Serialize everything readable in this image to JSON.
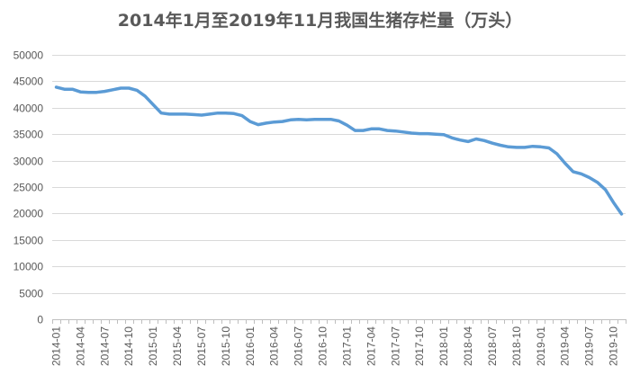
{
  "chart_data": {
    "type": "line",
    "title": "2014年1月至2019年11月我国生猪存栏量（万头）",
    "xlabel": "",
    "ylabel": "",
    "ylim": [
      0,
      50000
    ],
    "yticks": [
      0,
      5000,
      10000,
      15000,
      20000,
      25000,
      30000,
      35000,
      40000,
      45000,
      50000
    ],
    "grid": true,
    "legend": "none",
    "line_color": "#5b9bd5",
    "categories": [
      "2014-01",
      "2014-02",
      "2014-03",
      "2014-04",
      "2014-05",
      "2014-06",
      "2014-07",
      "2014-08",
      "2014-09",
      "2014-10",
      "2014-11",
      "2014-12",
      "2015-01",
      "2015-02",
      "2015-03",
      "2015-04",
      "2015-05",
      "2015-06",
      "2015-07",
      "2015-08",
      "2015-09",
      "2015-10",
      "2015-11",
      "2015-12",
      "2016-01",
      "2016-02",
      "2016-03",
      "2016-04",
      "2016-05",
      "2016-06",
      "2016-07",
      "2016-08",
      "2016-09",
      "2016-10",
      "2016-11",
      "2016-12",
      "2017-01",
      "2017-02",
      "2017-03",
      "2017-04",
      "2017-05",
      "2017-06",
      "2017-07",
      "2017-08",
      "2017-09",
      "2017-10",
      "2017-11",
      "2017-12",
      "2018-01",
      "2018-02",
      "2018-03",
      "2018-04",
      "2018-05",
      "2018-06",
      "2018-07",
      "2018-08",
      "2018-09",
      "2018-10",
      "2018-11",
      "2018-12",
      "2019-01",
      "2019-02",
      "2019-03",
      "2019-04",
      "2019-05",
      "2019-06",
      "2019-07",
      "2019-08",
      "2019-09",
      "2019-10",
      "2019-11"
    ],
    "tick_labels": [
      "2014-01",
      "2014-04",
      "2014-07",
      "2014-10",
      "2015-01",
      "2015-04",
      "2015-07",
      "2015-10",
      "2016-01",
      "2016-04",
      "2016-07",
      "2016-10",
      "2017-01",
      "2017-04",
      "2017-07",
      "2017-10",
      "2018-01",
      "2018-04",
      "2018-07",
      "2018-10",
      "2019-01",
      "2019-04",
      "2019-07",
      "2019-10"
    ],
    "series": [
      {
        "values": [
          43900,
          43500,
          43500,
          43000,
          42900,
          42900,
          43100,
          43400,
          43700,
          43700,
          43300,
          42200,
          40600,
          39000,
          38800,
          38800,
          38800,
          38700,
          38600,
          38800,
          39000,
          39000,
          38900,
          38500,
          37400,
          36800,
          37100,
          37300,
          37400,
          37700,
          37800,
          37700,
          37800,
          37800,
          37800,
          37500,
          36700,
          35700,
          35700,
          36000,
          36000,
          35700,
          35600,
          35400,
          35200,
          35100,
          35100,
          35000,
          34900,
          34300,
          33900,
          33600,
          34100,
          33800,
          33300,
          32900,
          32600,
          32500,
          32500,
          32700,
          32600,
          32400,
          31300,
          29500,
          27900,
          27500,
          26800,
          25900,
          24500,
          22100,
          19900
        ]
      }
    ]
  }
}
